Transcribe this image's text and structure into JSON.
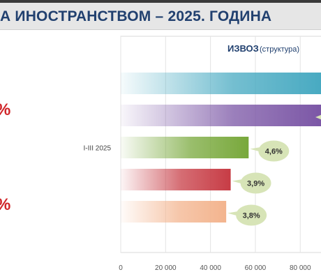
{
  "header": {
    "title": "А ИНОСТРАНСТВОМ – 2025. ГОДИНА"
  },
  "left_column": {
    "pct_1": "%",
    "pct_2": "%"
  },
  "chart_data": {
    "type": "bar",
    "orientation": "horizontal",
    "title": "ИЗВОЗ",
    "subtitle": "(структура)",
    "categories": [
      "",
      "",
      "I-III 2025",
      "",
      ""
    ],
    "values": [
      96000,
      93000,
      57000,
      49000,
      47000
    ],
    "data_labels": [
      "",
      "",
      "4,6%",
      "3,9%",
      "3,8%"
    ],
    "bar_colors": [
      "#46a9c1",
      "#7a55a5",
      "#78a83b",
      "#c73c45",
      "#f3b48e"
    ],
    "label_bubble_color": "#d7e4b7",
    "xlim": [
      0,
      88000
    ],
    "x_ticks": [
      0,
      20000,
      40000,
      60000,
      80000
    ],
    "x_tick_labels": [
      "0",
      "20 000",
      "40 000",
      "60 000",
      "80 000"
    ],
    "grid": "vertical"
  }
}
